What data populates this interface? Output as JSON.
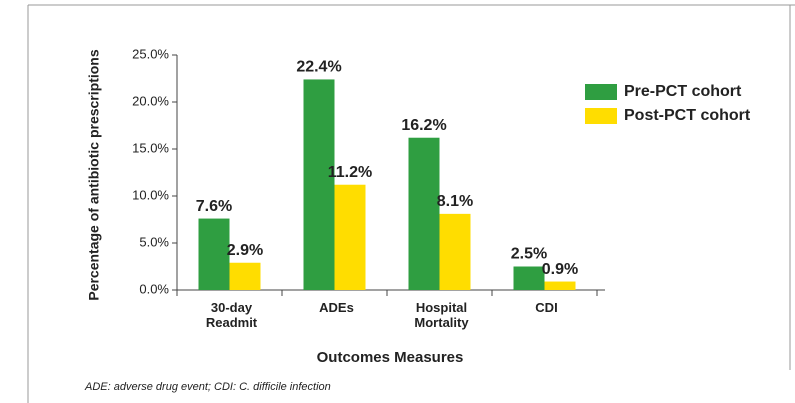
{
  "chart_data": {
    "type": "bar",
    "x_label": "Outcomes Measures",
    "y_label": "Percentage of antibiotic prescriptions",
    "categories": [
      "30-day Readmit",
      "ADEs",
      "Hospital Mortality",
      "CDI"
    ],
    "series": [
      {
        "name": "Pre-PCT cohort",
        "color": "#2f9e41",
        "values": [
          7.6,
          22.4,
          16.2,
          2.5
        ],
        "value_labels": [
          "7.6%",
          "22.4%",
          "16.2%",
          "2.5%"
        ]
      },
      {
        "name": "Post-PCT cohort",
        "color": "#ffdd00",
        "values": [
          2.9,
          11.2,
          8.1,
          0.9
        ],
        "value_labels": [
          "2.9%",
          "11.2%",
          "8.1%",
          "0.9%"
        ]
      }
    ],
    "ylim": [
      0,
      25
    ],
    "yticks": [
      {
        "value": 0,
        "label": "0.0%"
      },
      {
        "value": 5,
        "label": "5.0%"
      },
      {
        "value": 10,
        "label": "10.0%"
      },
      {
        "value": 15,
        "label": "15.0%"
      },
      {
        "value": 20,
        "label": "20.0%"
      },
      {
        "value": 25,
        "label": "25.0%"
      }
    ],
    "legend": "right",
    "footnote": "ADE: adverse drug event; CDI: C. difficile infection"
  }
}
